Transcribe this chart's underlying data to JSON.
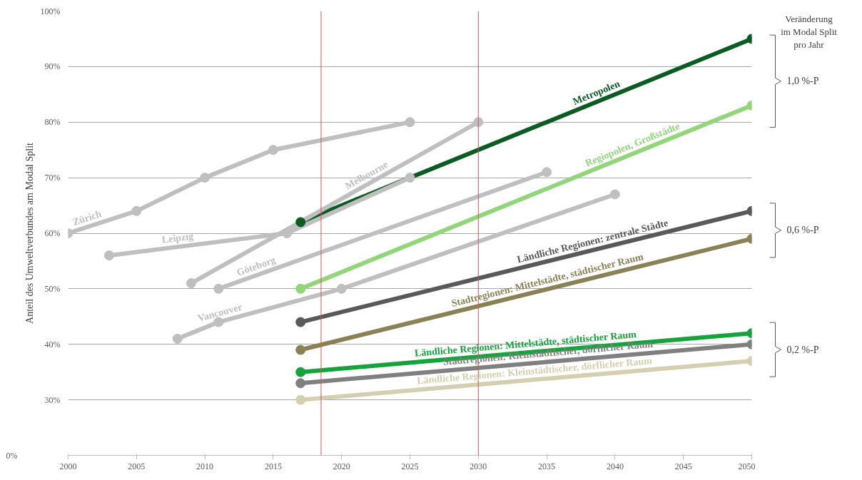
{
  "chart_data": {
    "type": "line",
    "ylabel": "Anteil des Umweltverbundes am Modal Split",
    "xlim": [
      2000,
      2050
    ],
    "xticks": [
      2000,
      2005,
      2010,
      2015,
      2020,
      2025,
      2030,
      2035,
      2040,
      2045,
      2050
    ],
    "ylim": [
      20,
      100
    ],
    "yticks": [
      {
        "value": 30,
        "label": "30%"
      },
      {
        "value": 40,
        "label": "40%"
      },
      {
        "value": 50,
        "label": "50%"
      },
      {
        "value": 60,
        "label": "60%"
      },
      {
        "value": 70,
        "label": "70%"
      },
      {
        "value": 80,
        "label": "80%"
      },
      {
        "value": 90,
        "label": "90%"
      },
      {
        "value": 100,
        "label": "100%"
      }
    ],
    "grid": "y",
    "marker": "circle",
    "line_style": "solid",
    "ref_lines": [
      {
        "axis": "x",
        "value": 2018.5,
        "color": "#d9544f"
      },
      {
        "axis": "x",
        "value": 2030,
        "color": "#d9544f"
      }
    ],
    "annotations": [
      "Veränderung\nim Modal Split\npro Jahr",
      "1,0 %-P",
      "0,6 %-P",
      "0,2 %-P",
      "0%"
    ],
    "series": [
      {
        "name": "Metropolen",
        "color": "#0b5b23",
        "x": [
          2017,
          2050
        ],
        "values": [
          62,
          95
        ]
      },
      {
        "name": "Regiopolen, Großstädte",
        "color": "#92d57a",
        "x": [
          2017,
          2050
        ],
        "values": [
          50,
          83
        ]
      },
      {
        "name": "Ländliche Regionen: zentrale Städte",
        "color": "#595959",
        "x": [
          2017,
          2050
        ],
        "values": [
          44,
          64
        ]
      },
      {
        "name": "Stadtregionen: Mittelstädte, städtischer Raum",
        "color": "#8b8156",
        "x": [
          2017,
          2050
        ],
        "values": [
          39,
          59
        ]
      },
      {
        "name": "Ländliche Regionen: Mittelstädte, städtischer Raum",
        "color": "#17a33c",
        "x": [
          2017,
          2050
        ],
        "values": [
          35,
          42
        ]
      },
      {
        "name": "Stadtregionen: Kleinstädtischer, dörflicher Raum",
        "color": "#808080",
        "x": [
          2017,
          2050
        ],
        "values": [
          33,
          40
        ]
      },
      {
        "name": "Ländliche Regionen: Kleinstädtischer, dörflicher Raum",
        "color": "#d4cfb0",
        "x": [
          2017,
          2050
        ],
        "values": [
          30,
          37
        ]
      },
      {
        "name": "Zürich",
        "color": "#bfbfbf",
        "x": [
          2000,
          2005,
          2010,
          2015,
          2025
        ],
        "values": [
          60,
          64,
          70,
          75,
          80
        ]
      },
      {
        "name": "Leipzig",
        "color": "#bfbfbf",
        "x": [
          2003,
          2016,
          2025
        ],
        "values": [
          56,
          60,
          70
        ]
      },
      {
        "name": "Melbourne",
        "color": "#bfbfbf",
        "x": [
          2009,
          2030
        ],
        "values": [
          51,
          80
        ]
      },
      {
        "name": "Göteborg",
        "color": "#bfbfbf",
        "x": [
          2011,
          2035
        ],
        "values": [
          50,
          71
        ]
      },
      {
        "name": "Vancouver",
        "color": "#bfbfbf",
        "x": [
          2008,
          2011,
          2020,
          2040
        ],
        "values": [
          41,
          44,
          50,
          67
        ]
      }
    ]
  }
}
